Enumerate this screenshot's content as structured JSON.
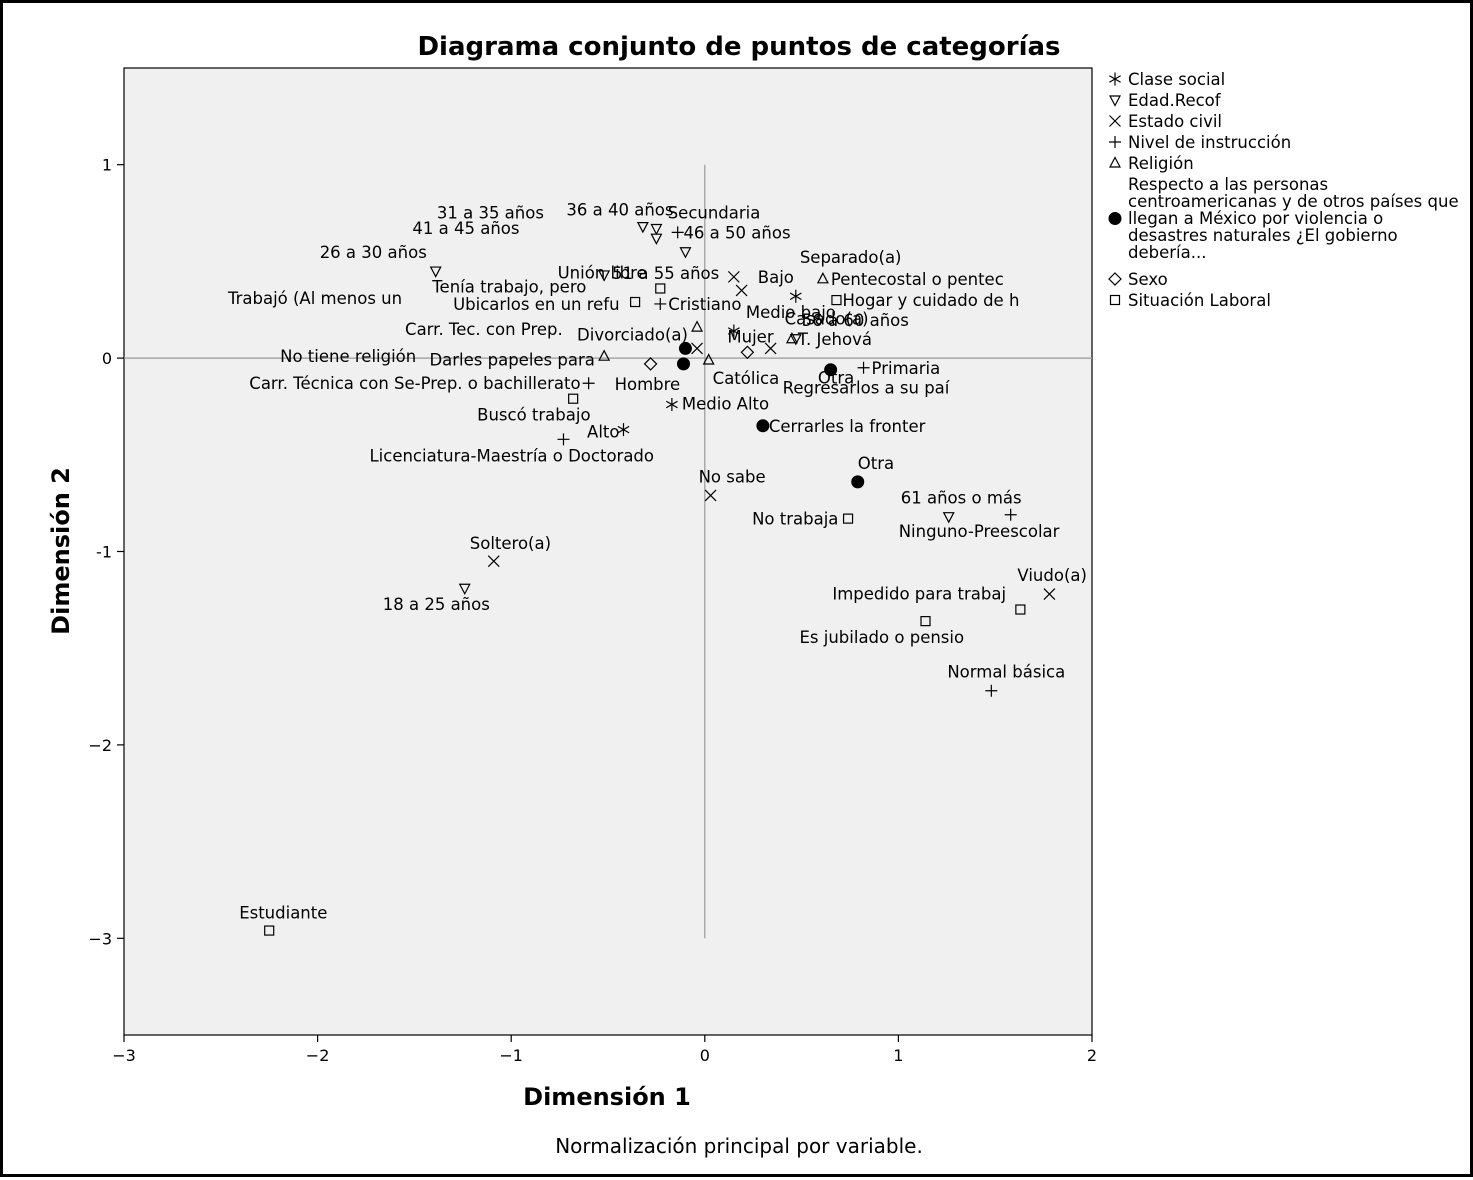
{
  "chart_data": {
    "type": "scatter",
    "title": "Diagrama conjunto de puntos de categorías",
    "xlabel": "Dimensión 1",
    "ylabel": "Dimensión 2",
    "note": "Normalización principal por variable.",
    "xlim": [
      -3,
      2
    ],
    "ylim": [
      -3.5,
      1.5
    ],
    "xticks": [
      -3,
      -2,
      -1,
      0,
      1,
      2
    ],
    "yticks": [
      1,
      0,
      -1,
      -2,
      -3
    ],
    "tick_labels_x": [
      "−3",
      "−2",
      "−1",
      "0",
      "1",
      "2"
    ],
    "tick_labels_y": [
      "1",
      "0",
      "-1",
      "−2",
      "−3"
    ],
    "legend_position": "right",
    "series": [
      {
        "name": "Clase social",
        "marker": "star",
        "points": [
          {
            "x": 0.47,
            "y": 0.32,
            "label": "Bajo"
          },
          {
            "x": 0.15,
            "y": 0.14,
            "label": "Medio bajo"
          },
          {
            "x": -0.17,
            "y": -0.24,
            "label": "Medio Alto"
          },
          {
            "x": -0.42,
            "y": -0.37,
            "label": "Alto"
          }
        ]
      },
      {
        "name": "Edad.Recof",
        "marker": "triangle-down",
        "points": [
          {
            "x": -1.24,
            "y": -1.19,
            "label": "18 a 25 años"
          },
          {
            "x": -1.39,
            "y": 0.45,
            "label": "26 a 30 años"
          },
          {
            "x": -0.32,
            "y": 0.68,
            "label": "31 a 35 años"
          },
          {
            "x": -0.25,
            "y": 0.67,
            "label": "36 a 40 años"
          },
          {
            "x": -0.25,
            "y": 0.62,
            "label": "41 a 45 años"
          },
          {
            "x": -0.1,
            "y": 0.55,
            "label": "46 a 50 años"
          },
          {
            "x": -0.52,
            "y": 0.43,
            "label": "51 a 55 años"
          },
          {
            "x": 0.47,
            "y": 0.1,
            "label": "56 a 60 años"
          },
          {
            "x": 1.26,
            "y": -0.82,
            "label": "61 años o más"
          }
        ]
      },
      {
        "name": "Estado civil",
        "marker": "x",
        "points": [
          {
            "x": -1.09,
            "y": -1.05,
            "label": "Soltero(a)"
          },
          {
            "x": 0.15,
            "y": 0.42,
            "label": "Separado(a)"
          },
          {
            "x": 0.19,
            "y": 0.35,
            "label": "Unión libre"
          },
          {
            "x": -0.04,
            "y": 0.05,
            "label": "Divorciado(a)"
          },
          {
            "x": 0.34,
            "y": 0.05,
            "label": "Casado(a)"
          },
          {
            "x": 0.03,
            "y": -0.71,
            "label": "No sabe"
          },
          {
            "x": 1.78,
            "y": -1.22,
            "label": "Viudo(a)"
          }
        ]
      },
      {
        "name": "Nivel de instrucción",
        "marker": "plus",
        "points": [
          {
            "x": -0.14,
            "y": 0.65,
            "label": "Secundaria"
          },
          {
            "x": -0.6,
            "y": -0.13,
            "label": "Carr. Técnica con Se-Prep. o bachillerato"
          },
          {
            "x": -0.73,
            "y": -0.42,
            "label": "Licenciatura-Maestría o Doctorado"
          },
          {
            "x": 0.82,
            "y": -0.05,
            "label": "Primaria"
          },
          {
            "x": 1.58,
            "y": -0.81,
            "label": "Ninguno-Preescolar"
          },
          {
            "x": 1.48,
            "y": -1.72,
            "label": "Normal básica"
          },
          {
            "x": -0.23,
            "y": 0.28,
            "label": "Cristiano"
          }
        ]
      },
      {
        "name": "Religión",
        "marker": "triangle-up",
        "points": [
          {
            "x": 0.61,
            "y": 0.41,
            "label": "Pentecostal o pentec"
          },
          {
            "x": 0.45,
            "y": 0.1,
            "label": "T. Jehová"
          },
          {
            "x": -0.04,
            "y": 0.16,
            "label": "Carr. Tec. con Prep."
          },
          {
            "x": -0.52,
            "y": 0.01,
            "label": "No tiene religión"
          },
          {
            "x": 0.02,
            "y": -0.01,
            "label": "Católica"
          }
        ]
      },
      {
        "name": "Respecto a las personas centroamericanas y de otros países que llegan  a México por violencia o desastres naturales ¿El gobierno debería...",
        "marker": "circle",
        "points": [
          {
            "x": -0.1,
            "y": 0.05,
            "label": "Darles papeles para"
          },
          {
            "x": -0.11,
            "y": -0.03,
            "label": "Darles papeles para"
          },
          {
            "x": 0.65,
            "y": -0.06,
            "label": "Regresarlos a su paí"
          },
          {
            "x": 0.3,
            "y": -0.35,
            "label": "Cerrarles la fronter"
          },
          {
            "x": 0.79,
            "y": -0.64,
            "label": "Otra"
          }
        ]
      },
      {
        "name": "Sexo",
        "marker": "diamond",
        "points": [
          {
            "x": 0.22,
            "y": 0.03,
            "label": "Mujer"
          },
          {
            "x": -0.28,
            "y": -0.03,
            "label": "Hombre"
          }
        ]
      },
      {
        "name": "Situación Laboral",
        "marker": "square",
        "points": [
          {
            "x": -0.23,
            "y": 0.36,
            "label": "Tenía trabajo, pero"
          },
          {
            "x": -0.36,
            "y": 0.29,
            "label": "Ubicarlos en un refu"
          },
          {
            "x": 0.68,
            "y": 0.3,
            "label": "Hogar y cuidado de h"
          },
          {
            "x": -0.68,
            "y": -0.21,
            "label": "Buscó trabajo"
          },
          {
            "x": 0.74,
            "y": -0.83,
            "label": "No trabaja"
          },
          {
            "x": 1.14,
            "y": -1.36,
            "label": "Es jubilado o pensio"
          },
          {
            "x": 1.63,
            "y": -1.3,
            "label": "Impedido para trabaj"
          },
          {
            "x": -2.25,
            "y": -2.96,
            "label": "Estudiante"
          }
        ]
      }
    ],
    "text_labels": [
      {
        "x": -1.43,
        "y": 0.31,
        "text": "Trabajó (Al menos un"
      },
      {
        "x": 0.14,
        "y": -0.06,
        "text": "Otra"
      }
    ]
  }
}
